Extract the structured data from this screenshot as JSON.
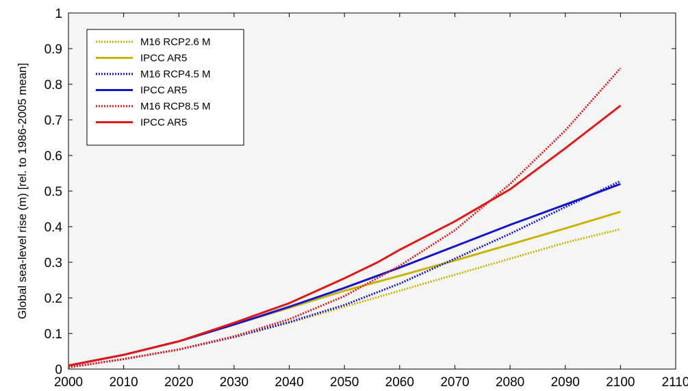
{
  "chart_data": {
    "type": "line",
    "title": "",
    "xlabel": "",
    "ylabel": "Global sea-level rise (m) [rel. to 1986-2005 mean]",
    "xlim": [
      2000,
      2110
    ],
    "ylim": [
      0,
      1
    ],
    "xticks": [
      "2000",
      "2010",
      "2020",
      "2030",
      "2040",
      "2050",
      "2060",
      "2070",
      "2080",
      "2090",
      "2100",
      "2110"
    ],
    "yticks": [
      "0",
      "0.1",
      "0.2",
      "0.3",
      "0.4",
      "0.5",
      "0.6",
      "0.7",
      "0.8",
      "0.9",
      "1"
    ],
    "grid": false,
    "legend_position": "top-left",
    "series": [
      {
        "name": "M16 RCP2.6 M",
        "color": "#c8b400",
        "style": "dotted",
        "x": [
          2000,
          2010,
          2020,
          2030,
          2040,
          2050,
          2060,
          2070,
          2080,
          2090,
          2100
        ],
        "y": [
          0.005,
          0.028,
          0.055,
          0.09,
          0.13,
          0.175,
          0.22,
          0.265,
          0.31,
          0.355,
          0.393
        ]
      },
      {
        "name": "IPCC AR5",
        "color": "#c8b400",
        "style": "solid",
        "x": [
          2000,
          2010,
          2020,
          2030,
          2040,
          2050,
          2060,
          2070,
          2080,
          2090,
          2100
        ],
        "y": [
          0.01,
          0.04,
          0.078,
          0.125,
          0.172,
          0.22,
          0.262,
          0.305,
          0.35,
          0.395,
          0.442
        ]
      },
      {
        "name": "M16 RCP4.5 M",
        "color": "#1414c8",
        "style": "dotted",
        "x": [
          2000,
          2010,
          2020,
          2030,
          2040,
          2050,
          2060,
          2070,
          2080,
          2090,
          2100
        ],
        "y": [
          0.005,
          0.028,
          0.055,
          0.09,
          0.132,
          0.18,
          0.24,
          0.31,
          0.38,
          0.455,
          0.528
        ]
      },
      {
        "name": "IPCC AR5",
        "color": "#1414c8",
        "style": "solid",
        "x": [
          2000,
          2010,
          2020,
          2030,
          2040,
          2050,
          2060,
          2070,
          2080,
          2090,
          2100
        ],
        "y": [
          0.01,
          0.04,
          0.078,
          0.125,
          0.175,
          0.228,
          0.285,
          0.345,
          0.405,
          0.462,
          0.52
        ]
      },
      {
        "name": "M16 RCP8.5 M",
        "color": "#e01818",
        "style": "dotted",
        "x": [
          2000,
          2010,
          2020,
          2030,
          2040,
          2050,
          2060,
          2070,
          2080,
          2090,
          2100
        ],
        "y": [
          0.005,
          0.028,
          0.055,
          0.092,
          0.14,
          0.205,
          0.29,
          0.39,
          0.52,
          0.67,
          0.845
        ]
      },
      {
        "name": "IPCC AR5",
        "color": "#e01818",
        "style": "solid",
        "x": [
          2000,
          2006,
          2010,
          2020,
          2030,
          2040,
          2050,
          2056,
          2060,
          2070,
          2080,
          2090,
          2100
        ],
        "y": [
          0.01,
          0.028,
          0.04,
          0.078,
          0.13,
          0.185,
          0.255,
          0.3,
          0.335,
          0.415,
          0.505,
          0.62,
          0.74
        ]
      }
    ]
  }
}
